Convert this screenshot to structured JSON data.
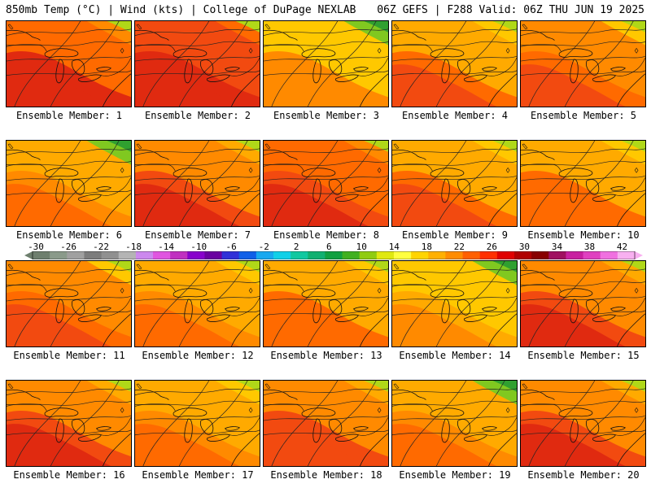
{
  "header": {
    "left": "850mb Temp (°C) | Wind (kts) | College of DuPage NEXLAB",
    "right": "06Z GEFS | F288 Valid: 06Z THU JUN 19 2025"
  },
  "colorbar": {
    "labels": [
      "-30",
      "-26",
      "-22",
      "-18",
      "-14",
      "-10",
      "-6",
      "-2",
      "2",
      "6",
      "10",
      "14",
      "18",
      "22",
      "26",
      "30",
      "34",
      "38",
      "42"
    ],
    "colors": [
      "#6e7f6e",
      "#8a9a8a",
      "#a0a0a0",
      "#7c7c7c",
      "#909090",
      "#b4b4b4",
      "#cc88ee",
      "#e055e0",
      "#c030c0",
      "#8800cc",
      "#6a00a0",
      "#3030d8",
      "#1060e8",
      "#18a8f0",
      "#10d0e8",
      "#10c8a0",
      "#10b070",
      "#10a040",
      "#40b020",
      "#90cc10",
      "#e0e810",
      "#ffff40",
      "#ffd400",
      "#ffb000",
      "#ff8c00",
      "#ff6000",
      "#ff3000",
      "#e00000",
      "#b00000",
      "#880000",
      "#a01060",
      "#c820a0",
      "#e040c0",
      "#f070e0",
      "#f8b0f0"
    ]
  },
  "members": [
    {
      "label": "Ensemble Member: 1",
      "warmth": 0.78
    },
    {
      "label": "Ensemble Member: 2",
      "warmth": 0.9
    },
    {
      "label": "Ensemble Member: 3",
      "warmth": 0.4
    },
    {
      "label": "Ensemble Member: 4",
      "warmth": 0.55
    },
    {
      "label": "Ensemble Member: 5",
      "warmth": 0.62
    },
    {
      "label": "Ensemble Member: 6",
      "warmth": 0.45
    },
    {
      "label": "Ensemble Member: 7",
      "warmth": 0.72
    },
    {
      "label": "Ensemble Member: 8",
      "warmth": 0.75
    },
    {
      "label": "Ensemble Member: 9",
      "warmth": 0.58
    },
    {
      "label": "Ensemble Member: 10",
      "warmth": 0.52
    },
    {
      "label": "Ensemble Member: 11",
      "warmth": 0.6
    },
    {
      "label": "Ensemble Member: 12",
      "warmth": 0.5
    },
    {
      "label": "Ensemble Member: 13",
      "warmth": 0.52
    },
    {
      "label": "Ensemble Member: 14",
      "warmth": 0.35
    },
    {
      "label": "Ensemble Member: 15",
      "warmth": 0.68
    },
    {
      "label": "Ensemble Member: 16",
      "warmth": 0.66
    },
    {
      "label": "Ensemble Member: 17",
      "warmth": 0.5
    },
    {
      "label": "Ensemble Member: 18",
      "warmth": 0.64
    },
    {
      "label": "Ensemble Member: 19",
      "warmth": 0.45
    },
    {
      "label": "Ensemble Member: 20",
      "warmth": 0.7
    }
  ]
}
